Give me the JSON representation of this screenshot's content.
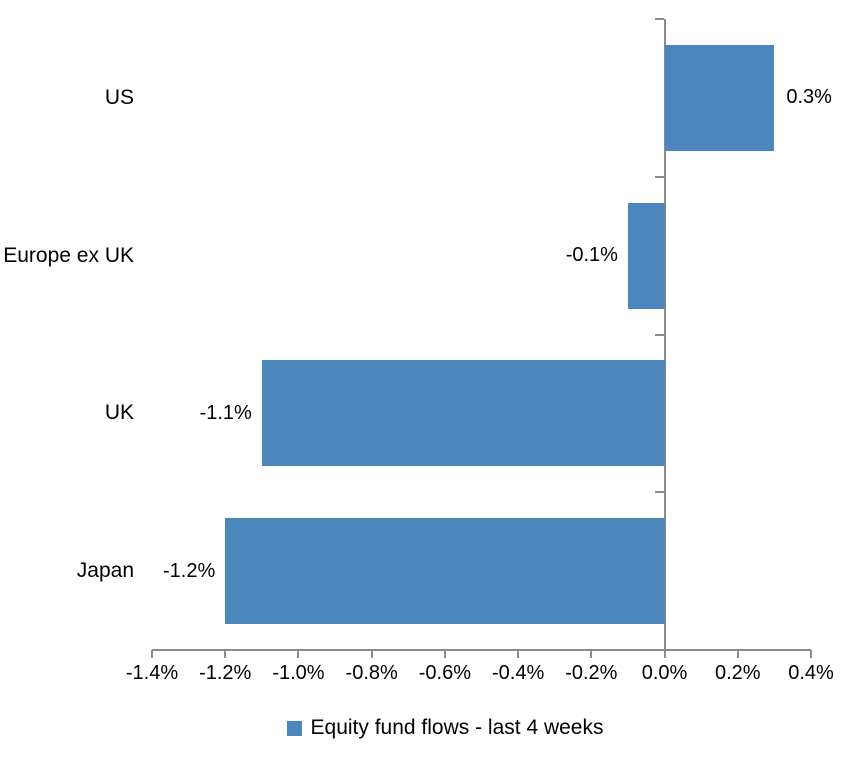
{
  "chart_data": {
    "type": "bar",
    "orientation": "horizontal",
    "title": "",
    "xlabel": "",
    "ylabel": "",
    "categories": [
      "US",
      "Europe ex UK",
      "UK",
      "Japan"
    ],
    "series": [
      {
        "name": "Equity fund flows - last 4 weeks",
        "values": [
          0.3,
          -0.1,
          -1.1,
          -1.2
        ],
        "data_labels": [
          "0.3%",
          "-0.1%",
          "-1.1%",
          "-1.2%"
        ]
      }
    ],
    "xlim": [
      -1.4,
      0.4
    ],
    "x_ticks": [
      -1.4,
      -1.2,
      -1.0,
      -0.8,
      -0.6,
      -0.4,
      -0.2,
      0.0,
      0.2,
      0.4
    ],
    "x_tick_labels": [
      "-1.4%",
      "-1.2%",
      "-1.0%",
      "-0.8%",
      "-0.6%",
      "-0.4%",
      "-0.2%",
      "0.0%",
      "0.2%",
      "0.4%"
    ],
    "grid": false,
    "legend": {
      "label": "Equity fund flows - last 4 weeks",
      "position": "bottom"
    },
    "colors": {
      "bar": "#4B86BC",
      "axis": "#8B8B8B",
      "text": "#000000",
      "background": "#FFFFFF"
    }
  }
}
